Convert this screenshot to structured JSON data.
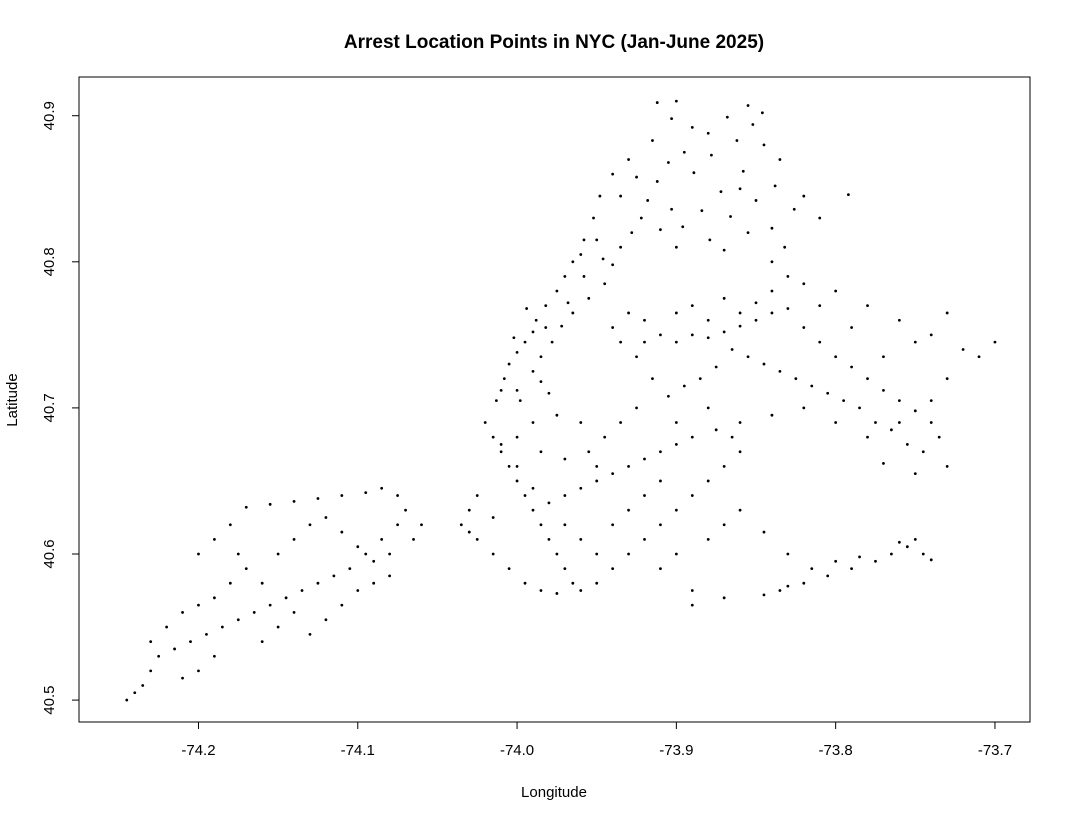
{
  "chart_data": {
    "type": "scatter",
    "title": "Arrest Location Points in NYC (Jan-June 2025)",
    "xlabel": "Longitude",
    "ylabel": "Latitude",
    "xlim": [
      -74.275,
      -73.678
    ],
    "ylim": [
      40.485,
      40.9265
    ],
    "xticks": [
      -74.2,
      -74.1,
      -74.0,
      -73.9,
      -73.8,
      -73.7
    ],
    "xtick_labels": [
      "-74.2",
      "-74.1",
      "-74.0",
      "-73.9",
      "-73.8",
      "-73.7"
    ],
    "yticks": [
      40.5,
      40.6,
      40.7,
      40.8,
      40.9
    ],
    "ytick_labels": [
      "40.5",
      "40.6",
      "40.7",
      "40.8",
      "40.9"
    ],
    "grid": false,
    "legend": "none",
    "point_color": "#000000",
    "points": [
      [
        -73.895,
        40.875
      ],
      [
        -73.905,
        40.868
      ],
      [
        -73.912,
        40.855
      ],
      [
        -73.918,
        40.842
      ],
      [
        -73.903,
        40.836
      ],
      [
        -73.889,
        40.861
      ],
      [
        -73.878,
        40.873
      ],
      [
        -73.862,
        40.883
      ],
      [
        -73.852,
        40.894
      ],
      [
        -73.846,
        40.902
      ],
      [
        -73.858,
        40.862
      ],
      [
        -73.872,
        40.848
      ],
      [
        -73.884,
        40.835
      ],
      [
        -73.896,
        40.824
      ],
      [
        -73.879,
        40.815
      ],
      [
        -73.866,
        40.831
      ],
      [
        -73.85,
        40.842
      ],
      [
        -73.838,
        40.852
      ],
      [
        -73.826,
        40.836
      ],
      [
        -73.84,
        40.823
      ],
      [
        -73.855,
        40.82
      ],
      [
        -73.87,
        40.808
      ],
      [
        -73.9,
        40.81
      ],
      [
        -73.91,
        40.822
      ],
      [
        -73.922,
        40.83
      ],
      [
        -73.935,
        40.845
      ],
      [
        -73.925,
        40.858
      ],
      [
        -73.93,
        40.87
      ],
      [
        -73.86,
        40.85
      ],
      [
        -73.82,
        40.845
      ],
      [
        -73.81,
        40.83
      ],
      [
        -73.792,
        40.846
      ],
      [
        -73.84,
        40.8
      ],
      [
        -73.832,
        40.81
      ],
      [
        -73.915,
        40.883
      ],
      [
        -73.903,
        40.898
      ],
      [
        -73.912,
        40.909
      ],
      [
        -73.9,
        40.91
      ],
      [
        -73.89,
        40.892
      ],
      [
        -73.88,
        40.888
      ],
      [
        -73.868,
        40.899
      ],
      [
        -73.855,
        40.907
      ],
      [
        -73.845,
        40.88
      ],
      [
        -73.835,
        40.87
      ],
      [
        -73.94,
        40.86
      ],
      [
        -73.948,
        40.845
      ],
      [
        -73.952,
        40.83
      ],
      [
        -73.958,
        40.815
      ],
      [
        -73.965,
        40.8
      ],
      [
        -73.97,
        40.79
      ],
      [
        -73.975,
        40.78
      ],
      [
        -73.982,
        40.77
      ],
      [
        -73.988,
        40.76
      ],
      [
        -73.99,
        40.752
      ],
      [
        -73.995,
        40.745
      ],
      [
        -74.0,
        40.738
      ],
      [
        -74.005,
        40.73
      ],
      [
        -74.008,
        40.72
      ],
      [
        -74.01,
        40.712
      ],
      [
        -74.013,
        40.705
      ],
      [
        -73.985,
        40.735
      ],
      [
        -73.978,
        40.745
      ],
      [
        -73.972,
        40.756
      ],
      [
        -73.965,
        40.765
      ],
      [
        -73.955,
        40.775
      ],
      [
        -73.945,
        40.785
      ],
      [
        -73.94,
        40.798
      ],
      [
        -73.935,
        40.81
      ],
      [
        -73.928,
        40.82
      ],
      [
        -73.99,
        40.725
      ],
      [
        -73.985,
        40.718
      ],
      [
        -73.98,
        40.71
      ],
      [
        -74.0,
        40.712
      ],
      [
        -73.998,
        40.705
      ],
      [
        -73.96,
        40.805
      ],
      [
        -73.95,
        40.815
      ],
      [
        -73.982,
        40.755
      ],
      [
        -73.994,
        40.768
      ],
      [
        -74.002,
        40.748
      ],
      [
        -73.968,
        40.772
      ],
      [
        -73.958,
        40.79
      ],
      [
        -73.946,
        40.802
      ],
      [
        -73.92,
        40.76
      ],
      [
        -73.91,
        40.75
      ],
      [
        -73.9,
        40.745
      ],
      [
        -73.89,
        40.75
      ],
      [
        -73.88,
        40.748
      ],
      [
        -73.87,
        40.752
      ],
      [
        -73.86,
        40.756
      ],
      [
        -73.85,
        40.76
      ],
      [
        -73.84,
        40.765
      ],
      [
        -73.83,
        40.768
      ],
      [
        -73.82,
        40.755
      ],
      [
        -73.81,
        40.745
      ],
      [
        -73.8,
        40.735
      ],
      [
        -73.79,
        40.728
      ],
      [
        -73.78,
        40.72
      ],
      [
        -73.77,
        40.712
      ],
      [
        -73.76,
        40.705
      ],
      [
        -73.75,
        40.698
      ],
      [
        -73.74,
        40.69
      ],
      [
        -73.735,
        40.68
      ],
      [
        -73.745,
        40.67
      ],
      [
        -73.755,
        40.675
      ],
      [
        -73.765,
        40.685
      ],
      [
        -73.775,
        40.69
      ],
      [
        -73.785,
        40.7
      ],
      [
        -73.795,
        40.705
      ],
      [
        -73.805,
        40.71
      ],
      [
        -73.815,
        40.715
      ],
      [
        -73.825,
        40.72
      ],
      [
        -73.835,
        40.725
      ],
      [
        -73.845,
        40.73
      ],
      [
        -73.855,
        40.735
      ],
      [
        -73.865,
        40.74
      ],
      [
        -73.875,
        40.728
      ],
      [
        -73.885,
        40.72
      ],
      [
        -73.895,
        40.715
      ],
      [
        -73.905,
        40.708
      ],
      [
        -73.915,
        40.72
      ],
      [
        -73.925,
        40.735
      ],
      [
        -73.935,
        40.745
      ],
      [
        -73.94,
        40.755
      ],
      [
        -73.93,
        40.765
      ],
      [
        -73.89,
        40.77
      ],
      [
        -73.87,
        40.775
      ],
      [
        -73.84,
        40.78
      ],
      [
        -73.82,
        40.785
      ],
      [
        -73.8,
        40.78
      ],
      [
        -73.78,
        40.77
      ],
      [
        -73.76,
        40.76
      ],
      [
        -73.74,
        40.75
      ],
      [
        -73.72,
        40.74
      ],
      [
        -73.71,
        40.735
      ],
      [
        -73.7,
        40.745
      ],
      [
        -73.73,
        40.765
      ],
      [
        -73.75,
        40.745
      ],
      [
        -73.77,
        40.735
      ],
      [
        -73.79,
        40.755
      ],
      [
        -73.81,
        40.77
      ],
      [
        -73.83,
        40.79
      ],
      [
        -73.85,
        40.772
      ],
      [
        -73.86,
        40.765
      ],
      [
        -73.88,
        40.76
      ],
      [
        -73.9,
        40.765
      ],
      [
        -73.92,
        40.745
      ],
      [
        -73.73,
        40.72
      ],
      [
        -73.74,
        40.705
      ],
      [
        -73.76,
        40.69
      ],
      [
        -73.78,
        40.68
      ],
      [
        -73.8,
        40.69
      ],
      [
        -73.82,
        40.7
      ],
      [
        -73.84,
        40.695
      ],
      [
        -73.86,
        40.69
      ],
      [
        -73.88,
        40.7
      ],
      [
        -73.9,
        40.69
      ],
      [
        -73.73,
        40.66
      ],
      [
        -73.75,
        40.655
      ],
      [
        -73.77,
        40.662
      ],
      [
        -74.02,
        40.69
      ],
      [
        -74.015,
        40.68
      ],
      [
        -74.01,
        40.67
      ],
      [
        -74.005,
        40.66
      ],
      [
        -74.0,
        40.65
      ],
      [
        -73.995,
        40.64
      ],
      [
        -73.99,
        40.63
      ],
      [
        -73.985,
        40.62
      ],
      [
        -73.98,
        40.61
      ],
      [
        -73.975,
        40.6
      ],
      [
        -73.97,
        40.59
      ],
      [
        -73.965,
        40.58
      ],
      [
        -73.96,
        40.575
      ],
      [
        -73.95,
        40.58
      ],
      [
        -73.94,
        40.59
      ],
      [
        -73.93,
        40.6
      ],
      [
        -73.92,
        40.61
      ],
      [
        -73.91,
        40.62
      ],
      [
        -73.9,
        40.63
      ],
      [
        -73.89,
        40.64
      ],
      [
        -73.88,
        40.65
      ],
      [
        -73.87,
        40.66
      ],
      [
        -73.86,
        40.67
      ],
      [
        -73.865,
        40.68
      ],
      [
        -73.875,
        40.685
      ],
      [
        -73.89,
        40.68
      ],
      [
        -73.9,
        40.675
      ],
      [
        -73.91,
        40.67
      ],
      [
        -73.92,
        40.665
      ],
      [
        -73.93,
        40.66
      ],
      [
        -73.94,
        40.655
      ],
      [
        -73.95,
        40.65
      ],
      [
        -73.96,
        40.645
      ],
      [
        -73.97,
        40.64
      ],
      [
        -73.98,
        40.635
      ],
      [
        -73.99,
        40.645
      ],
      [
        -74.0,
        40.66
      ],
      [
        -74.01,
        40.675
      ],
      [
        -74.025,
        40.64
      ],
      [
        -74.03,
        40.63
      ],
      [
        -74.035,
        40.62
      ],
      [
        -74.025,
        40.61
      ],
      [
        -74.015,
        40.6
      ],
      [
        -74.005,
        40.59
      ],
      [
        -73.995,
        40.58
      ],
      [
        -73.985,
        40.575
      ],
      [
        -73.975,
        40.573
      ],
      [
        -73.95,
        40.6
      ],
      [
        -73.96,
        40.61
      ],
      [
        -73.97,
        40.62
      ],
      [
        -73.94,
        40.62
      ],
      [
        -73.93,
        40.63
      ],
      [
        -73.92,
        40.64
      ],
      [
        -73.91,
        40.65
      ],
      [
        -73.955,
        40.67
      ],
      [
        -73.945,
        40.68
      ],
      [
        -73.935,
        40.69
      ],
      [
        -73.925,
        40.7
      ],
      [
        -73.96,
        40.69
      ],
      [
        -73.975,
        40.695
      ],
      [
        -73.99,
        40.69
      ],
      [
        -74.0,
        40.68
      ],
      [
        -73.985,
        40.67
      ],
      [
        -73.97,
        40.665
      ],
      [
        -73.95,
        40.66
      ],
      [
        -73.9,
        40.6
      ],
      [
        -73.91,
        40.59
      ],
      [
        -73.88,
        40.61
      ],
      [
        -73.87,
        40.62
      ],
      [
        -73.86,
        40.63
      ],
      [
        -73.89,
        40.575
      ],
      [
        -74.03,
        40.615
      ],
      [
        -74.015,
        40.625
      ],
      [
        -74.24,
        40.505
      ],
      [
        -74.235,
        40.51
      ],
      [
        -74.23,
        40.52
      ],
      [
        -74.225,
        40.53
      ],
      [
        -74.215,
        40.535
      ],
      [
        -74.205,
        40.54
      ],
      [
        -74.195,
        40.545
      ],
      [
        -74.185,
        40.55
      ],
      [
        -74.175,
        40.555
      ],
      [
        -74.165,
        40.56
      ],
      [
        -74.155,
        40.565
      ],
      [
        -74.145,
        40.57
      ],
      [
        -74.135,
        40.575
      ],
      [
        -74.125,
        40.58
      ],
      [
        -74.115,
        40.585
      ],
      [
        -74.105,
        40.59
      ],
      [
        -74.095,
        40.6
      ],
      [
        -74.085,
        40.61
      ],
      [
        -74.075,
        40.62
      ],
      [
        -74.07,
        40.63
      ],
      [
        -74.075,
        40.64
      ],
      [
        -74.085,
        40.645
      ],
      [
        -74.095,
        40.642
      ],
      [
        -74.11,
        40.64
      ],
      [
        -74.125,
        40.638
      ],
      [
        -74.14,
        40.636
      ],
      [
        -74.155,
        40.634
      ],
      [
        -74.17,
        40.632
      ],
      [
        -74.18,
        40.62
      ],
      [
        -74.175,
        40.6
      ],
      [
        -74.17,
        40.59
      ],
      [
        -74.16,
        40.58
      ],
      [
        -74.15,
        40.6
      ],
      [
        -74.14,
        40.61
      ],
      [
        -74.13,
        40.62
      ],
      [
        -74.12,
        40.625
      ],
      [
        -74.11,
        40.615
      ],
      [
        -74.1,
        40.605
      ],
      [
        -74.09,
        40.595
      ],
      [
        -74.08,
        40.585
      ],
      [
        -74.19,
        40.53
      ],
      [
        -74.2,
        40.52
      ],
      [
        -74.21,
        40.515
      ],
      [
        -74.22,
        40.55
      ],
      [
        -74.21,
        40.56
      ],
      [
        -74.2,
        40.565
      ],
      [
        -74.19,
        40.57
      ],
      [
        -74.18,
        40.58
      ],
      [
        -74.16,
        40.54
      ],
      [
        -74.15,
        40.55
      ],
      [
        -74.14,
        40.56
      ],
      [
        -74.13,
        40.545
      ],
      [
        -74.12,
        40.555
      ],
      [
        -74.11,
        40.565
      ],
      [
        -74.1,
        40.575
      ],
      [
        -74.09,
        40.58
      ],
      [
        -74.08,
        40.6
      ],
      [
        -74.065,
        40.61
      ],
      [
        -74.06,
        40.62
      ],
      [
        -74.2,
        40.6
      ],
      [
        -74.19,
        40.61
      ],
      [
        -74.23,
        40.54
      ],
      [
        -74.245,
        40.5
      ],
      [
        -73.835,
        40.575
      ],
      [
        -73.82,
        40.58
      ],
      [
        -73.805,
        40.585
      ],
      [
        -73.79,
        40.59
      ],
      [
        -73.775,
        40.595
      ],
      [
        -73.765,
        40.6
      ],
      [
        -73.755,
        40.605
      ],
      [
        -73.745,
        40.6
      ],
      [
        -73.815,
        40.59
      ],
      [
        -73.8,
        40.595
      ],
      [
        -73.785,
        40.598
      ],
      [
        -73.74,
        40.596
      ],
      [
        -73.75,
        40.61
      ],
      [
        -73.76,
        40.608
      ],
      [
        -73.83,
        40.578
      ],
      [
        -73.845,
        40.572
      ],
      [
        -73.89,
        40.565
      ],
      [
        -73.87,
        40.57
      ],
      [
        -73.845,
        40.615
      ],
      [
        -73.83,
        40.6
      ]
    ]
  }
}
